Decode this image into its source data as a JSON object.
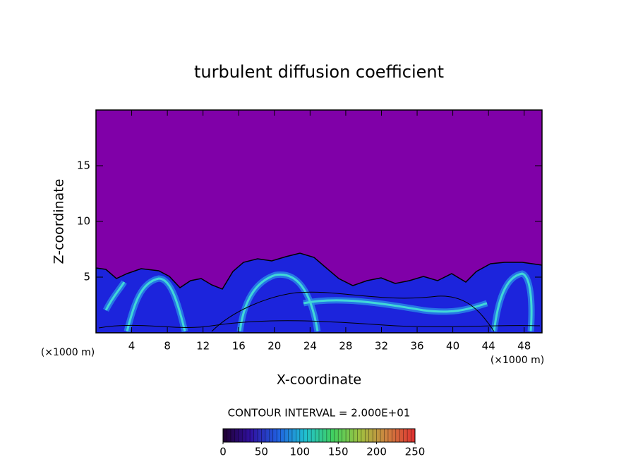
{
  "chart_data": {
    "type": "contour",
    "title": "turbulent diffusion coefficient",
    "x_label": "X-coordinate",
    "y_label": "Z-coordinate",
    "x_unit_label": "(×1000 m)",
    "x_unit_label_right": "(×1000 m)",
    "xlim": [
      0,
      50
    ],
    "xticks": [
      4,
      8,
      12,
      16,
      20,
      24,
      28,
      32,
      36,
      40,
      44,
      48
    ],
    "ylim": [
      0,
      20
    ],
    "yticks": [
      5,
      10,
      15
    ],
    "contour_interval_text": "CONTOUR INTERVAL = 2.000E+01",
    "colorbar_lim": [
      0,
      250
    ],
    "colorbar_ticks": [
      0,
      50,
      100,
      150,
      200,
      250
    ],
    "colormap": [
      "#200030",
      "#3010a0",
      "#2060e0",
      "#20c0d0",
      "#40d060",
      "#a0c040",
      "#d08040",
      "#e03030"
    ],
    "field_colors": [
      "#8000a8",
      "#1c24dc",
      "#2a8ae8",
      "#40d8d8"
    ]
  }
}
